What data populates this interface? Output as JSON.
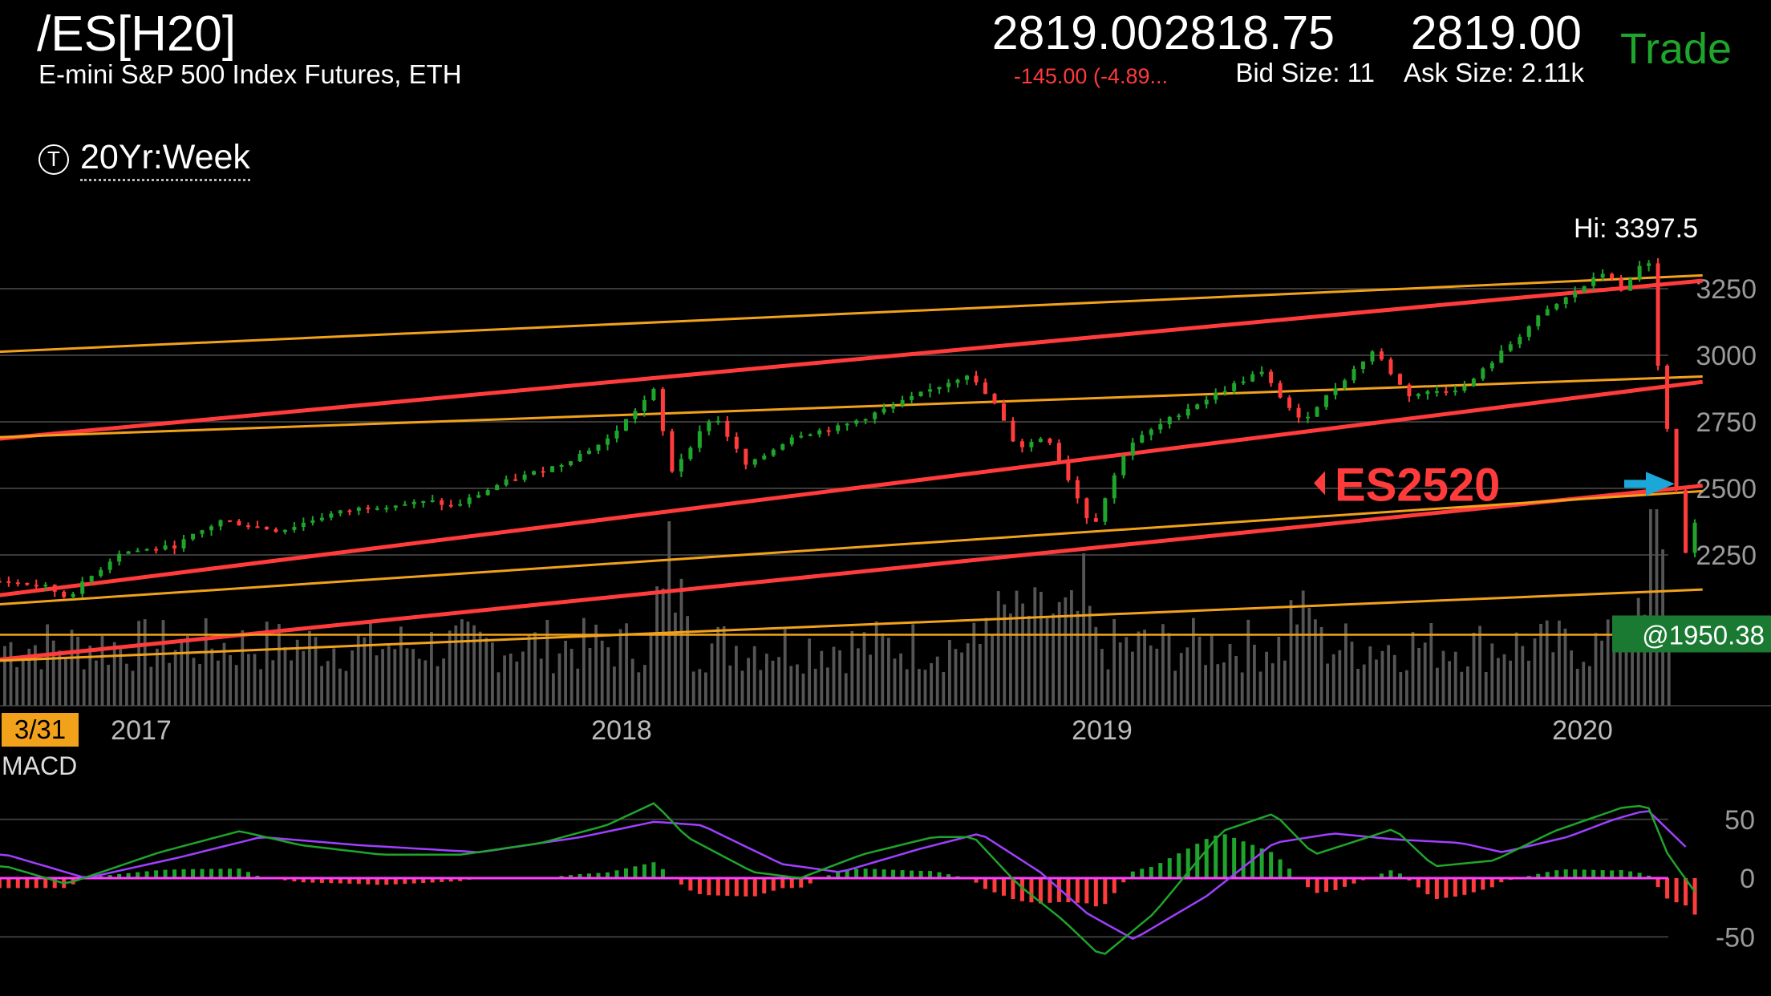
{
  "quote": {
    "symbol": "/ES[H20]",
    "description": "E-mini S&P 500 Index Futures, ETH",
    "last": "2819.00",
    "change": "-145.00 (-4.89...",
    "bid": "2818.75",
    "bid_size": "Bid Size: 11",
    "ask": "2819.00",
    "ask_size": "Ask Size: 2.11k",
    "trade_label": "Trade"
  },
  "toolbar": {
    "period_label": "20Yr:Week",
    "period_icon": "T-clock-icon"
  },
  "chart_data": [
    {
      "type": "candlestick",
      "subtitle": "Hi: 3397.5",
      "y_ticks": [
        2250,
        2500,
        2750,
        3000,
        3250
      ],
      "ylim": [
        1850,
        3420
      ],
      "x_ticks": [
        "2017",
        "2018",
        "2019",
        "2020"
      ],
      "x_range": [
        "2016-09",
        "2020-04"
      ],
      "cursor_date": "3/31",
      "alert": {
        "label": "ES2520",
        "value": 2520
      },
      "price_marker": {
        "label": "@1950.38",
        "value": 1950.38
      },
      "grid": true,
      "colors": {
        "up": "#1fa52b",
        "down": "#ff3b3b",
        "trend_red": "#ff3b3b",
        "trend_yellow": "#f2a21a",
        "volume": "#555555"
      },
      "close_path": [
        [
          "2016-09-20",
          2150
        ],
        [
          "2016-10-20",
          2130
        ],
        [
          "2016-11-05",
          2090
        ],
        [
          "2016-12-15",
          2260
        ],
        [
          "2017-01-25",
          2280
        ],
        [
          "2017-03-01",
          2380
        ],
        [
          "2017-04-15",
          2340
        ],
        [
          "2017-05-20",
          2400
        ],
        [
          "2017-06-20",
          2430
        ],
        [
          "2017-08-10",
          2450
        ],
        [
          "2017-08-25",
          2430
        ],
        [
          "2017-10-01",
          2520
        ],
        [
          "2017-11-15",
          2590
        ],
        [
          "2017-12-20",
          2680
        ],
        [
          "2018-01-26",
          2870
        ],
        [
          "2018-02-08",
          2560
        ],
        [
          "2018-03-10",
          2780
        ],
        [
          "2018-04-05",
          2580
        ],
        [
          "2018-05-10",
          2700
        ],
        [
          "2018-06-15",
          2730
        ],
        [
          "2018-07-25",
          2810
        ],
        [
          "2018-09-20",
          2930
        ],
        [
          "2018-10-10",
          2820
        ],
        [
          "2018-10-28",
          2650
        ],
        [
          "2018-11-20",
          2700
        ],
        [
          "2018-12-24",
          2350
        ],
        [
          "2019-01-20",
          2660
        ],
        [
          "2019-03-01",
          2790
        ],
        [
          "2019-04-30",
          2940
        ],
        [
          "2019-05-30",
          2750
        ],
        [
          "2019-07-25",
          3020
        ],
        [
          "2019-08-20",
          2850
        ],
        [
          "2019-10-03",
          2880
        ],
        [
          "2019-11-30",
          3150
        ],
        [
          "2020-01-20",
          3320
        ],
        [
          "2020-01-31",
          3230
        ],
        [
          "2020-02-20",
          3390
        ],
        [
          "2020-02-28",
          2950
        ],
        [
          "2020-03-20",
          2200
        ],
        [
          "2020-03-31",
          2560
        ]
      ],
      "trendlines": [
        {
          "color": "red",
          "from": [
            "2016-09",
            2680
          ],
          "to": [
            "2020-04",
            3280
          ]
        },
        {
          "color": "red",
          "from": [
            "2016-09",
            2090
          ],
          "to": [
            "2020-04",
            2900
          ]
        },
        {
          "color": "red",
          "from": [
            "2016-09",
            1850
          ],
          "to": [
            "2020-04",
            2510
          ]
        },
        {
          "color": "yellow",
          "from": [
            "2016-09",
            3010
          ],
          "to": [
            "2020-04",
            3300
          ]
        },
        {
          "color": "yellow",
          "from": [
            "2016-09",
            2690
          ],
          "to": [
            "2020-04",
            2920
          ]
        },
        {
          "color": "yellow",
          "from": [
            "2016-09",
            2060
          ],
          "to": [
            "2020-04",
            2490
          ]
        },
        {
          "color": "yellow",
          "from": [
            "2016-09",
            1850
          ],
          "to": [
            "2020-04",
            2120
          ]
        }
      ]
    },
    {
      "type": "bar",
      "title": "MACD",
      "y_ticks": [
        50,
        0,
        -50
      ],
      "ylim": [
        -75,
        65
      ],
      "series": [
        {
          "name": "Value",
          "color": "#1fa52b"
        },
        {
          "name": "Avg",
          "color": "#a040ff"
        },
        {
          "name": "Diff",
          "color_up": "#1fa52b",
          "color_down": "#ff3b3b"
        }
      ],
      "zero_line_color": "#ff40ff",
      "value_path": [
        [
          "2016-09-20",
          10
        ],
        [
          "2016-11-05",
          -5
        ],
        [
          "2017-01-15",
          22
        ],
        [
          "2017-03-15",
          40
        ],
        [
          "2017-05-01",
          28
        ],
        [
          "2017-07-01",
          20
        ],
        [
          "2017-09-01",
          20
        ],
        [
          "2017-11-01",
          30
        ],
        [
          "2017-12-20",
          45
        ],
        [
          "2018-01-26",
          64
        ],
        [
          "2018-02-20",
          35
        ],
        [
          "2018-04-10",
          5
        ],
        [
          "2018-05-15",
          0
        ],
        [
          "2018-07-01",
          20
        ],
        [
          "2018-08-25",
          35
        ],
        [
          "2018-09-25",
          35
        ],
        [
          "2018-10-28",
          -5
        ],
        [
          "2018-12-01",
          -35
        ],
        [
          "2018-12-31",
          -67
        ],
        [
          "2019-02-10",
          -30
        ],
        [
          "2019-04-01",
          40
        ],
        [
          "2019-05-10",
          55
        ],
        [
          "2019-06-10",
          20
        ],
        [
          "2019-08-10",
          42
        ],
        [
          "2019-09-10",
          10
        ],
        [
          "2019-10-25",
          15
        ],
        [
          "2019-12-10",
          40
        ],
        [
          "2020-01-31",
          60
        ],
        [
          "2020-02-20",
          62
        ],
        [
          "2020-03-05",
          20
        ],
        [
          "2020-03-31",
          -20
        ]
      ],
      "avg_path": [
        [
          "2016-09-20",
          20
        ],
        [
          "2016-11-20",
          0
        ],
        [
          "2017-02-01",
          18
        ],
        [
          "2017-04-01",
          35
        ],
        [
          "2017-06-15",
          28
        ],
        [
          "2017-09-15",
          22
        ],
        [
          "2017-12-01",
          35
        ],
        [
          "2018-01-26",
          48
        ],
        [
          "2018-03-01",
          45
        ],
        [
          "2018-05-01",
          12
        ],
        [
          "2018-06-15",
          5
        ],
        [
          "2018-08-15",
          25
        ],
        [
          "2018-09-30",
          38
        ],
        [
          "2018-11-15",
          5
        ],
        [
          "2018-12-20",
          -30
        ],
        [
          "2019-01-25",
          -52
        ],
        [
          "2019-03-20",
          -15
        ],
        [
          "2019-05-10",
          30
        ],
        [
          "2019-06-25",
          38
        ],
        [
          "2019-08-10",
          33
        ],
        [
          "2019-09-30",
          30
        ],
        [
          "2019-11-01",
          22
        ],
        [
          "2019-12-20",
          35
        ],
        [
          "2020-01-25",
          50
        ],
        [
          "2020-02-20",
          58
        ],
        [
          "2020-03-20",
          25
        ]
      ]
    }
  ]
}
